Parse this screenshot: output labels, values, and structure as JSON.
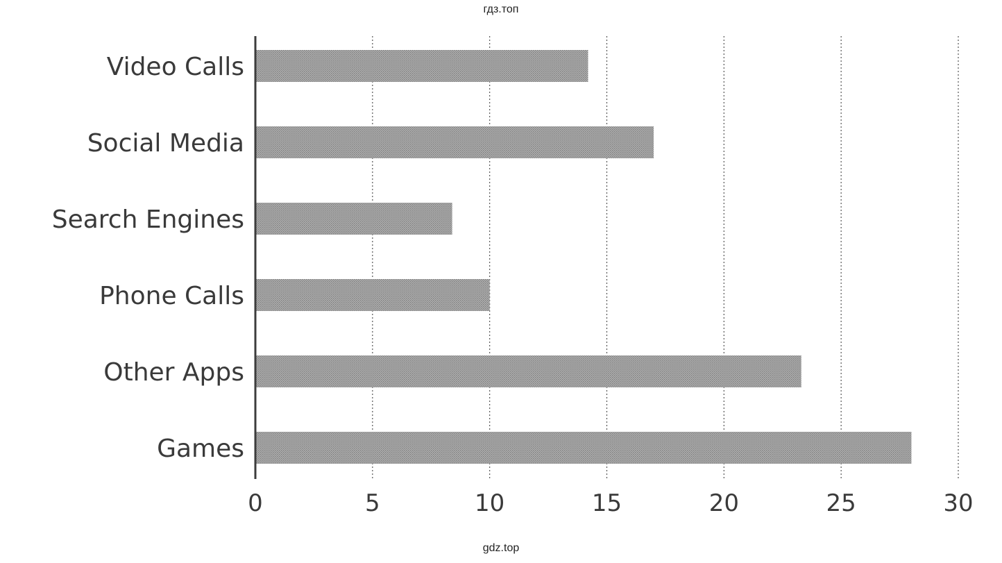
{
  "watermarks": {
    "top": "гдз.топ",
    "bottom": "gdz.top"
  },
  "colors": {
    "bar": "#9d9d9d",
    "axis": "#3c3c3c",
    "grid": "#555555",
    "text": "#3a3a3a"
  },
  "chart_data": {
    "type": "bar",
    "orientation": "horizontal",
    "categories": [
      "Video Calls",
      "Social Media",
      "Search Engines",
      "Phone Calls",
      "Other Apps",
      "Games"
    ],
    "values": [
      14.2,
      17,
      8.4,
      10,
      23.3,
      28
    ],
    "xlim": [
      0,
      30
    ],
    "xticks": [
      0,
      5,
      10,
      15,
      20,
      25,
      30
    ],
    "grid": "vertical dotted",
    "legend": "none"
  }
}
